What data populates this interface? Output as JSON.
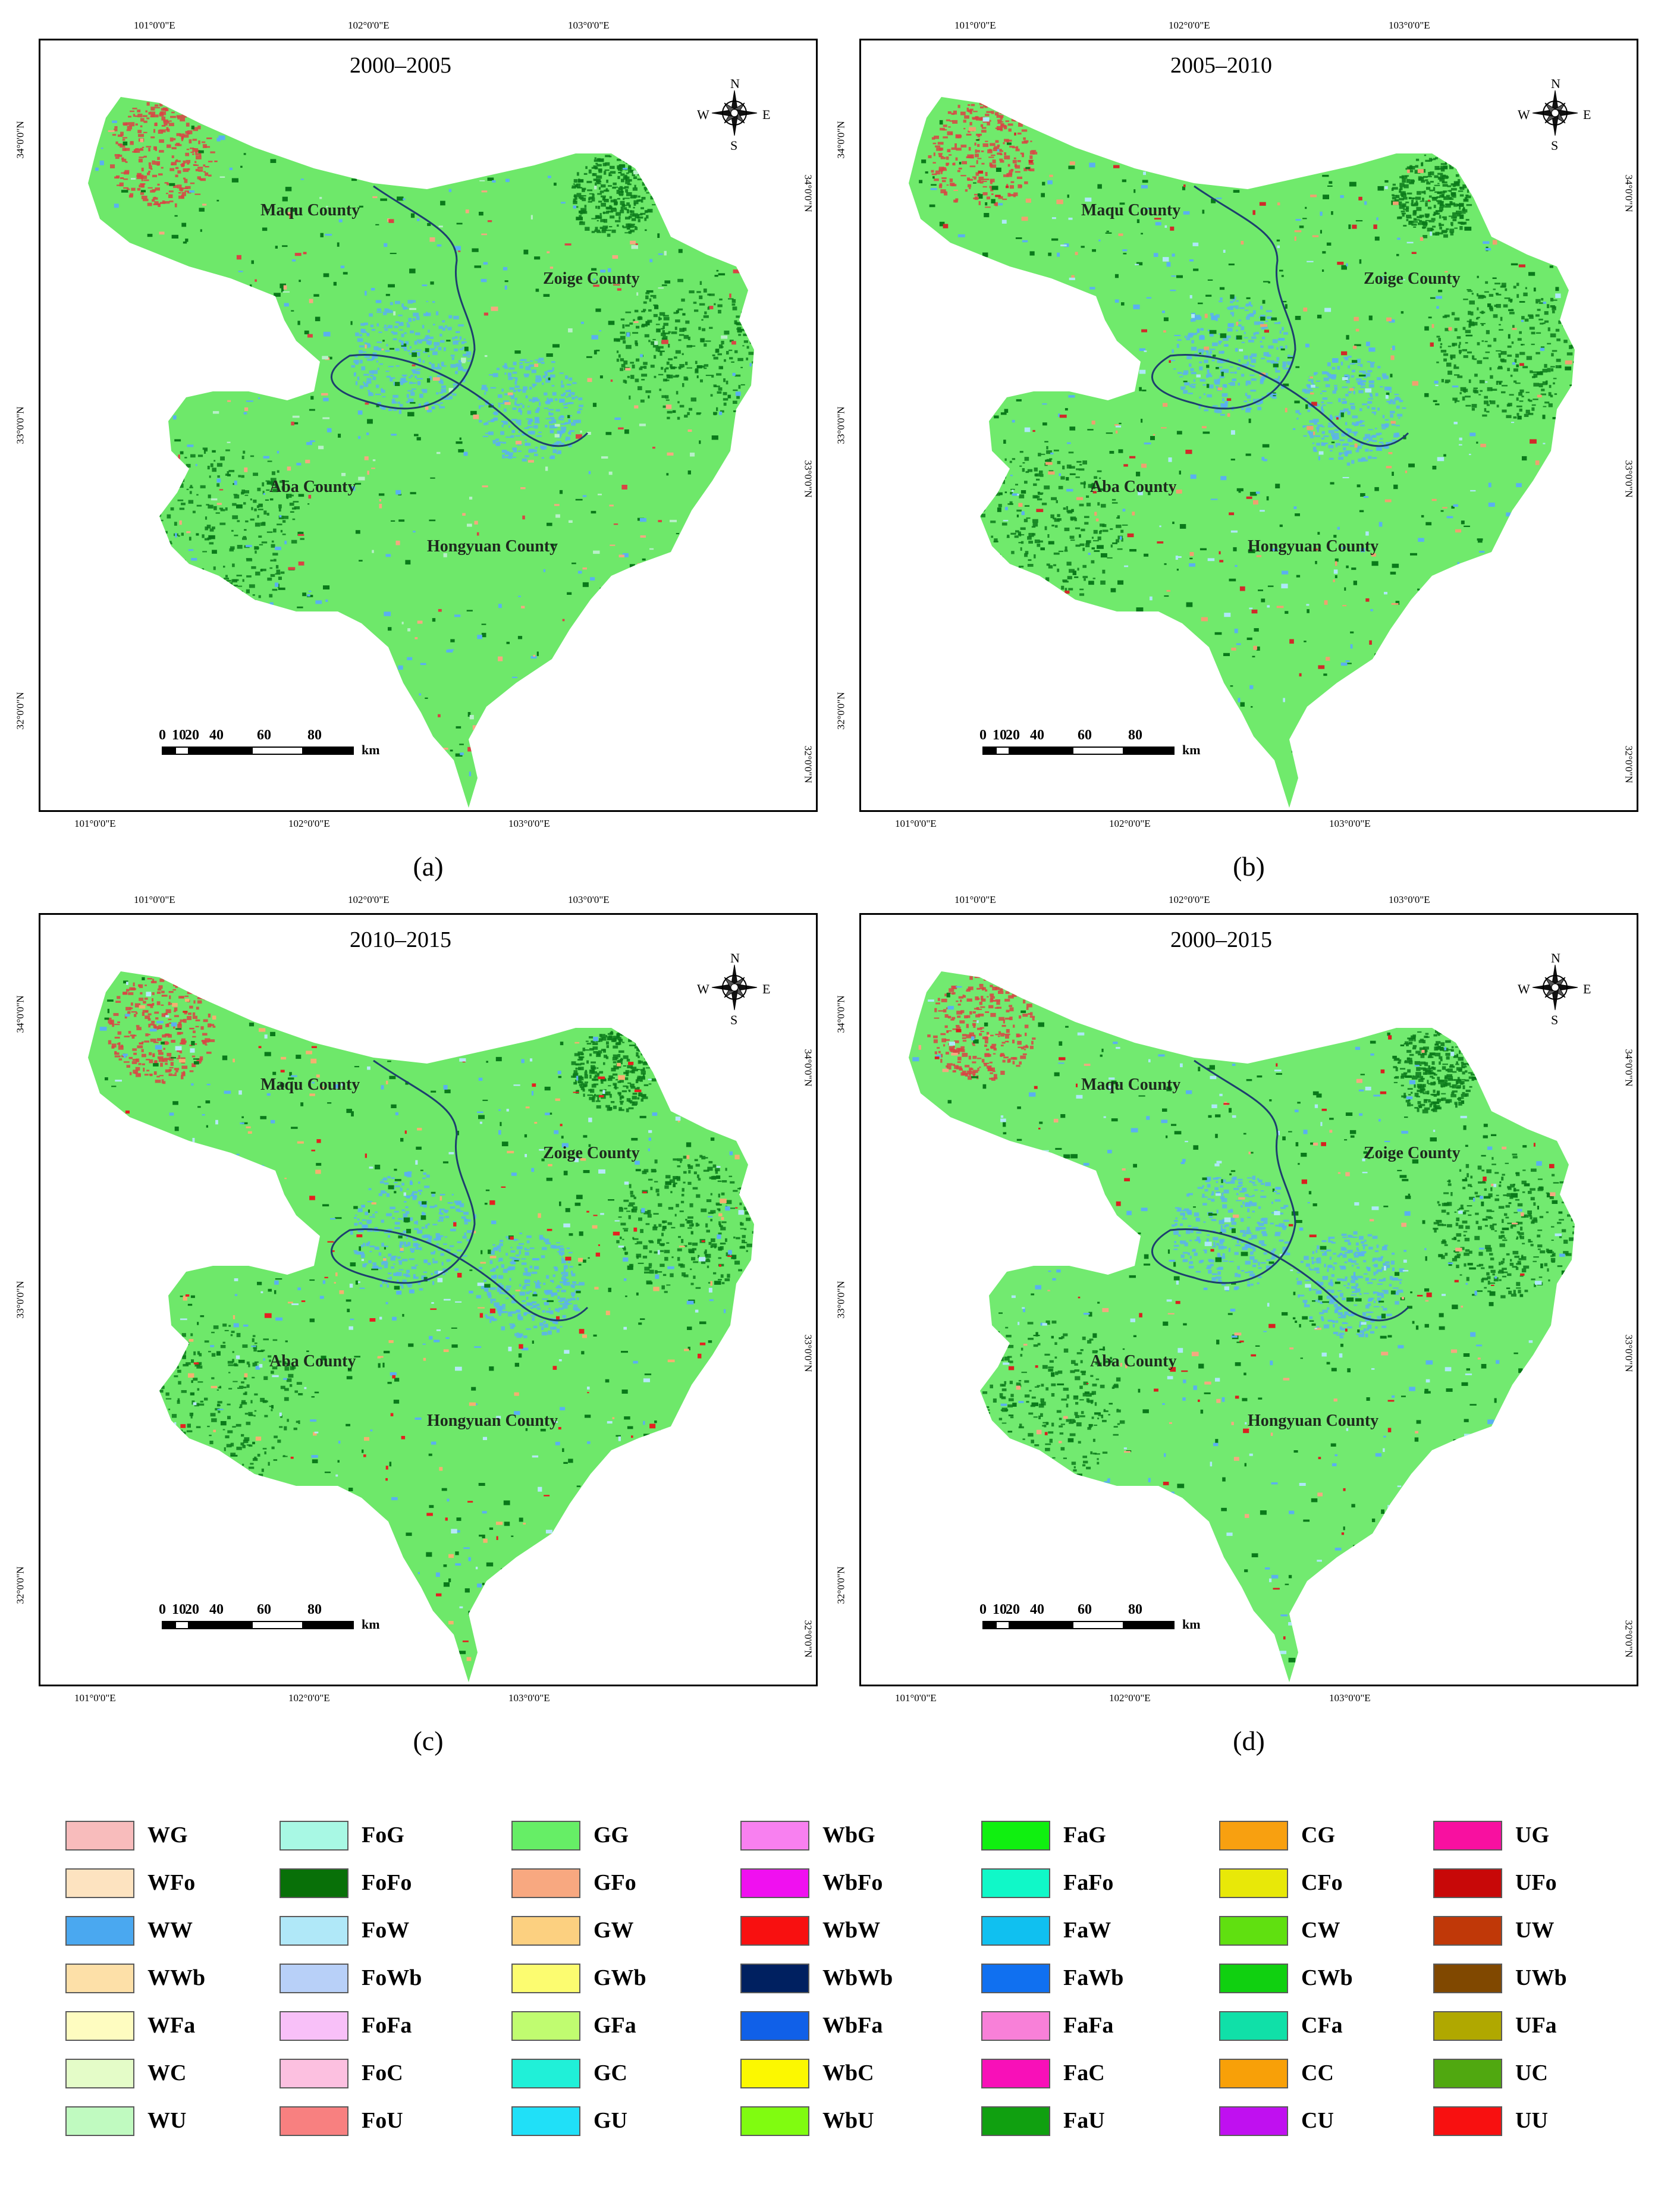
{
  "panels": [
    {
      "id": "a",
      "period": "2000–2005",
      "caption": "(a)",
      "base": "#6ee86a",
      "dots": [
        [
          "#0a7a1a",
          0.16
        ],
        [
          "#5ab0f0",
          0.08
        ],
        [
          "#f5a880",
          0.05
        ],
        [
          "#d94444",
          0.03
        ],
        [
          "#b8f0c8",
          0.04
        ]
      ]
    },
    {
      "id": "b",
      "period": "2005–2010",
      "caption": "(b)",
      "base": "#70ea6c",
      "dots": [
        [
          "#0a7a1a",
          0.22
        ],
        [
          "#5ab0f0",
          0.09
        ],
        [
          "#f0a070",
          0.07
        ],
        [
          "#d12a2a",
          0.04
        ],
        [
          "#aee8f8",
          0.06
        ]
      ]
    },
    {
      "id": "c",
      "period": "2010–2015",
      "caption": "(c)",
      "base": "#6ee86a",
      "dots": [
        [
          "#0a7a1a",
          0.2
        ],
        [
          "#5ab0f0",
          0.08
        ],
        [
          "#f5b070",
          0.06
        ],
        [
          "#e52020",
          0.05
        ],
        [
          "#b6e8f8",
          0.06
        ]
      ]
    },
    {
      "id": "d",
      "period": "2000–2015",
      "caption": "(d)",
      "base": "#72ea70",
      "dots": [
        [
          "#0a7a1a",
          0.19
        ],
        [
          "#5ab0f0",
          0.07
        ],
        [
          "#f5a880",
          0.05
        ],
        [
          "#d92020",
          0.04
        ],
        [
          "#aee8f8",
          0.07
        ]
      ]
    }
  ],
  "counties": {
    "maqu": "Maqu County",
    "zoige": "Zoige County",
    "aba": "Aba County",
    "hongyuan": "Hongyuan County"
  },
  "top_ticks": [
    "101°0'0\"E",
    "102°0'0\"E",
    "103°0'0\"E"
  ],
  "bottom_ticks": [
    "101°0'0\"E",
    "102°0'0\"E",
    "103°0'0\"E"
  ],
  "left_ticks": [
    "34°0'0\"N",
    "33°0'0\"N",
    "32°0'0\"N"
  ],
  "right_ticks": [
    "34°0'0\"N",
    "33°0'0\"N",
    "32°0'0\"N"
  ],
  "compass": {
    "n": "N",
    "s": "S",
    "e": "E",
    "w": "W"
  },
  "scale": {
    "labels": [
      "0",
      "10",
      "20",
      "40",
      "60",
      "80"
    ],
    "unit": "km"
  },
  "legend": [
    [
      [
        "WG",
        "#f8bcbc"
      ],
      [
        "WFo",
        "#fde3c0"
      ],
      [
        "WW",
        "#4aa8f0"
      ],
      [
        "WWb",
        "#fde0a8"
      ],
      [
        "WFa",
        "#fefcc0"
      ],
      [
        "WC",
        "#e4fcc8"
      ],
      [
        "WU",
        "#c0fac0"
      ]
    ],
    [
      [
        "FoG",
        "#a8f8e4"
      ],
      [
        "FoFo",
        "#087008"
      ],
      [
        "FoW",
        "#b0e8f8"
      ],
      [
        "FoWb",
        "#b8d0f8"
      ],
      [
        "FoFa",
        "#f8c0f8"
      ],
      [
        "FoC",
        "#fcc0e0"
      ],
      [
        "FoU",
        "#f88080"
      ]
    ],
    [
      [
        "GG",
        "#66ee66"
      ],
      [
        "GFo",
        "#f8a880"
      ],
      [
        "GW",
        "#fcd080"
      ],
      [
        "GWb",
        "#fcfc70"
      ],
      [
        "GFa",
        "#c0fc70"
      ],
      [
        "GC",
        "#20f0d8"
      ],
      [
        "GU",
        "#20e0f8"
      ]
    ],
    [
      [
        "WbG",
        "#f880f0"
      ],
      [
        "WbFo",
        "#f010f0"
      ],
      [
        "WbW",
        "#f81010"
      ],
      [
        "WbWb",
        "#002060"
      ],
      [
        "WbFa",
        "#1060e8"
      ],
      [
        "WbC",
        "#fcf800"
      ],
      [
        "WbU",
        "#80fc10"
      ]
    ],
    [
      [
        "FaG",
        "#10f010"
      ],
      [
        "FaFo",
        "#10f8c8"
      ],
      [
        "FaW",
        "#10c0f0"
      ],
      [
        "FaWb",
        "#1070f0"
      ],
      [
        "FaFa",
        "#f880d8"
      ],
      [
        "FaC",
        "#f810b8"
      ],
      [
        "FaU",
        "#10a010"
      ]
    ],
    [
      [
        "CG",
        "#f8a010"
      ],
      [
        "CFo",
        "#e8e808"
      ],
      [
        "CW",
        "#60e010"
      ],
      [
        "CWb",
        "#10d010"
      ],
      [
        "CFa",
        "#10e0a8"
      ],
      [
        "CC",
        "#f8a008"
      ],
      [
        "CU",
        "#c010f0"
      ]
    ],
    [
      [
        "UG",
        "#f810a0"
      ],
      [
        "UFo",
        "#c80808"
      ],
      [
        "UW",
        "#c03808"
      ],
      [
        "UWb",
        "#804800"
      ],
      [
        "UFa",
        "#b0a800"
      ],
      [
        "UC",
        "#50a810"
      ],
      [
        "UU",
        "#f81010"
      ]
    ]
  ]
}
